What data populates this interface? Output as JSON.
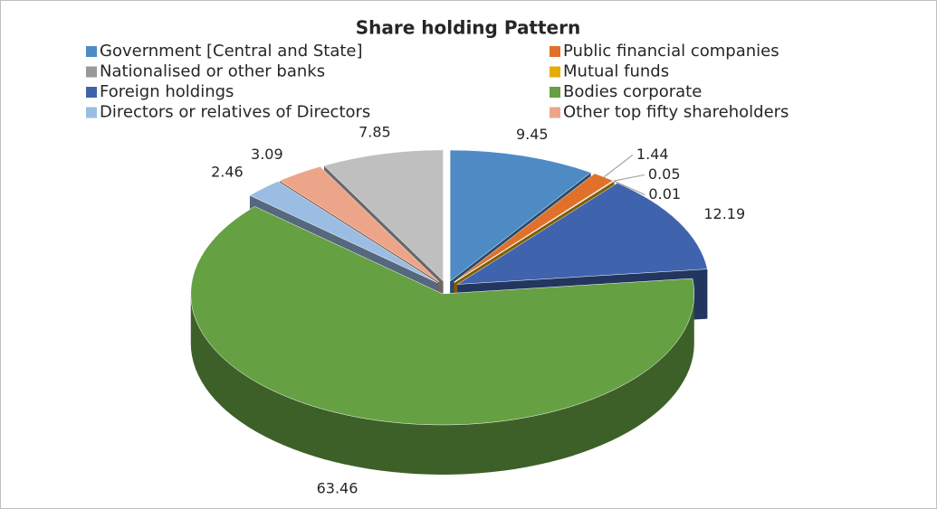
{
  "chart_data": {
    "type": "pie3d",
    "title": "Share holding Pattern",
    "categories": [
      "Government [Central and State]",
      "Public financial companies",
      "Nationalised or other banks",
      "Mutual funds",
      "Foreign holdings",
      "Bodies corporate",
      "Directors or relatives of Directors",
      "Other top fifty shareholders",
      null
    ],
    "values": [
      9.45,
      1.44,
      0.05,
      0.01,
      12.19,
      63.46,
      2.46,
      3.09,
      7.85
    ],
    "colors": [
      "#4e8bc5",
      "#e0702a",
      "#999999",
      "#e6ac00",
      "#3f63ad",
      "#65a043",
      "#9bbde3",
      "#eda58a",
      "#bfbfbf"
    ],
    "legend": "top"
  }
}
